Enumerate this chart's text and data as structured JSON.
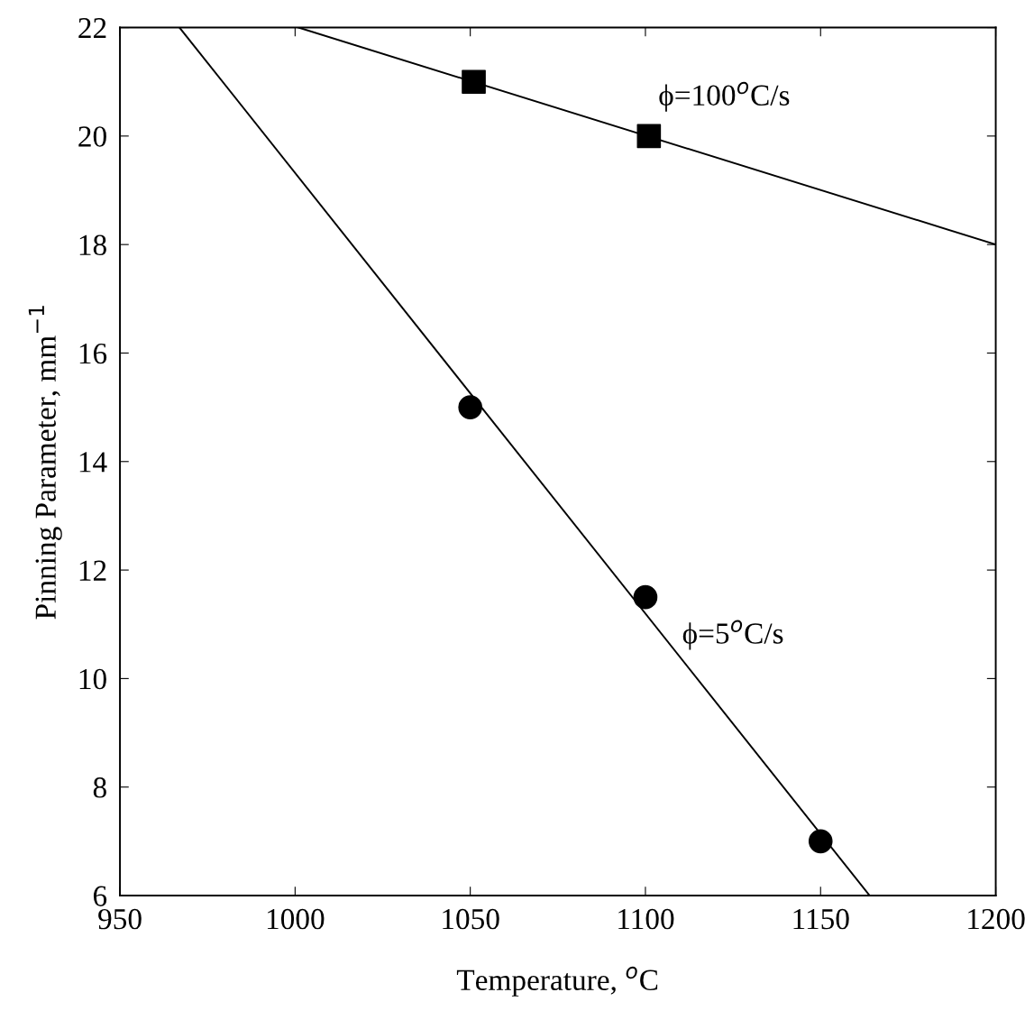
{
  "chart_data": {
    "type": "scatter",
    "xlabel": "Temperature, $^{o}$C",
    "ylabel": "Pinning Parameter, mm$^{−1}$",
    "xlim": [
      950,
      1200
    ],
    "ylim": [
      6,
      22
    ],
    "xticks": [
      950,
      1000,
      1050,
      1100,
      1150,
      1200
    ],
    "yticks": [
      6,
      8,
      10,
      12,
      14,
      16,
      18,
      20,
      22
    ],
    "grid": false,
    "legend": false,
    "series": [
      {
        "marker": "square",
        "color": "#000000",
        "x": [
          1051,
          1101
        ],
        "values": [
          21,
          20
        ]
      },
      {
        "marker": "circle",
        "color": "#000000",
        "x": [
          1050,
          1100,
          1150
        ],
        "values": [
          15,
          11.5,
          7
        ]
      },
      {
        "type": "line",
        "marker": "none",
        "line_style": "solid",
        "color": "#000000",
        "x": [
          1001,
          1200
        ],
        "values": [
          22,
          18
        ]
      },
      {
        "type": "line",
        "marker": "none",
        "line_style": "solid",
        "color": "#000000",
        "x": [
          967,
          1164
        ],
        "values": [
          22,
          6
        ]
      }
    ],
    "annotations": [
      "ϕ=100$^{o}$C/s",
      "ϕ=5$^{o}$C/s"
    ]
  }
}
